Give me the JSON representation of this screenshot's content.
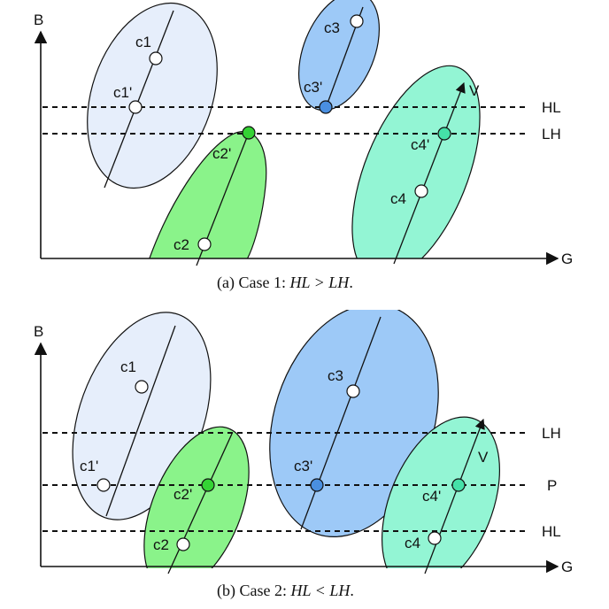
{
  "colors": {
    "cluster1": "#e6eefb",
    "cluster2": "#8af38a",
    "cluster3": "#9dc9f7",
    "cluster4": "#93f5d4",
    "point_open": "#ffffff",
    "point_c2_top": "#34d334",
    "point_c3_dark": "#4a8fe0",
    "point_c4_green": "#45e1a8"
  },
  "panel_a": {
    "axis_y_label": "B",
    "axis_x_label": "G",
    "line_hl_label": "HL",
    "line_lh_label": "LH",
    "vector_label": "V",
    "points": {
      "c1": "c1",
      "c1p": "c1'",
      "c2": "c2",
      "c2p": "c2'",
      "c3": "c3",
      "c3p": "c3'",
      "c4": "c4",
      "c4p": "c4'"
    },
    "caption_prefix": "(a) Case 1: ",
    "caption_math": "HL > LH",
    "caption_suffix": "."
  },
  "panel_b": {
    "axis_y_label": "B",
    "axis_x_label": "G",
    "line_lh_label": "LH",
    "line_p_label": "P",
    "line_hl_label": "HL",
    "vector_label": "V",
    "points": {
      "c1": "c1",
      "c1p": "c1'",
      "c2": "c2",
      "c2p": "c2'",
      "c3": "c3",
      "c3p": "c3'",
      "c4": "c4",
      "c4p": "c4'"
    },
    "caption_prefix": "(b) Case 2: ",
    "caption_math": "HL < LH",
    "caption_suffix": "."
  }
}
